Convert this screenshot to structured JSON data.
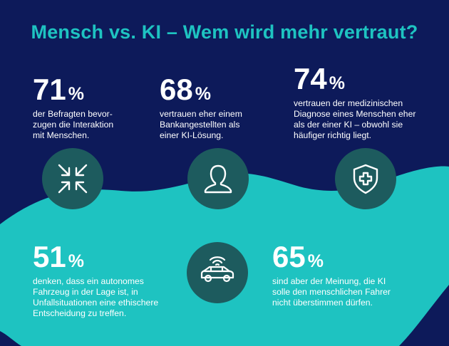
{
  "title": "Mensch vs. KI – Wem wird mehr vertraut?",
  "colors": {
    "navy": "#0d1a5a",
    "teal": "#1ec3c1",
    "circle": "#1d5b5e",
    "text": "#ffffff"
  },
  "stats": [
    {
      "value": "71",
      "unit": "%",
      "lines": [
        "der Befragten bevor-",
        "zugen die Interaktion",
        "mit Menschen."
      ],
      "icon": "arrows-inward-icon"
    },
    {
      "value": "68",
      "unit": "%",
      "lines": [
        "vertrauen eher einem",
        "Bankangestellten als",
        "einer KI-Lösung."
      ],
      "icon": "person-icon"
    },
    {
      "value": "74",
      "unit": "%",
      "lines": [
        "vertrauen der medizinischen",
        "Diagnose eines Menschen eher",
        "als der einer KI – obwohl sie",
        "häufiger richtig liegt."
      ],
      "icon": "medical-shield-icon"
    },
    {
      "value": "51",
      "unit": "%",
      "lines": [
        "denken, dass ein autonomes",
        "Fahrzeug in der Lage ist, in",
        "Unfallsituationen eine ethischere",
        "Entscheidung zu treffen."
      ],
      "icon": "connected-car-icon"
    },
    {
      "value": "65",
      "unit": "%",
      "lines": [
        "sind aber der Meinung, die KI",
        "solle den menschlichen Fahrer",
        "nicht überstimmen dürfen."
      ]
    }
  ]
}
